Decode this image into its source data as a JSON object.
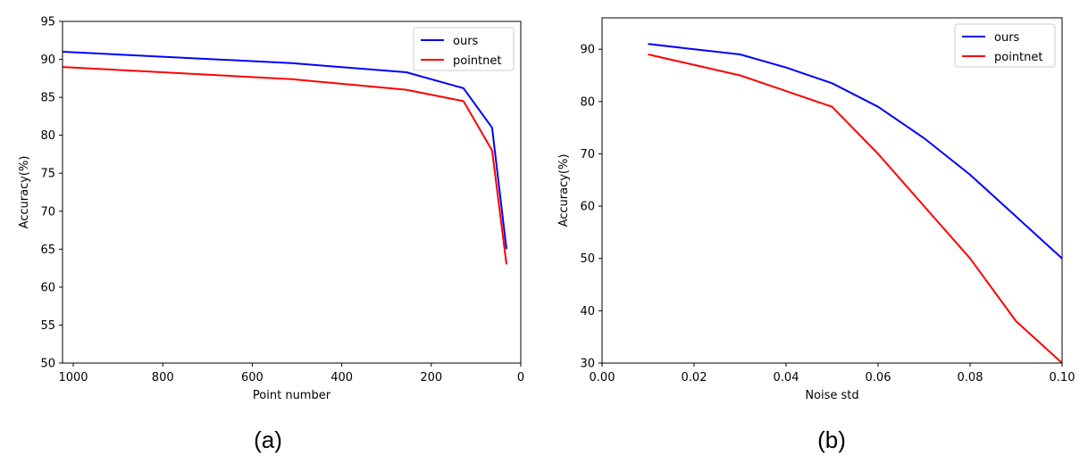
{
  "chart_data": [
    {
      "type": "line",
      "caption": "(a)",
      "xlabel": "Point number",
      "ylabel": "Accuracy(%)",
      "xlim": [
        1024,
        0
      ],
      "ylim": [
        50,
        95
      ],
      "x_inverted": true,
      "xticks": [
        1000,
        800,
        600,
        400,
        200,
        0
      ],
      "xtick_labels": [
        "1000",
        "800",
        "600",
        "400",
        "200",
        "0"
      ],
      "yticks": [
        50,
        55,
        60,
        65,
        70,
        75,
        80,
        85,
        90,
        95
      ],
      "ytick_labels": [
        "50",
        "55",
        "60",
        "65",
        "70",
        "75",
        "80",
        "85",
        "90",
        "95"
      ],
      "grid": false,
      "legend_position": "top-right",
      "series": [
        {
          "name": "ours",
          "color": "#0000ff",
          "x": [
            1024,
            512,
            256,
            128,
            64,
            32
          ],
          "y": [
            91.0,
            89.5,
            88.3,
            86.2,
            81.0,
            65.0
          ]
        },
        {
          "name": "pointnet",
          "color": "#ff0000",
          "x": [
            1024,
            512,
            256,
            128,
            64,
            32
          ],
          "y": [
            89.0,
            87.4,
            86.0,
            84.5,
            78.0,
            63.0
          ]
        }
      ]
    },
    {
      "type": "line",
      "caption": "(b)",
      "xlabel": "Noise std",
      "ylabel": "Accuracy(%)",
      "xlim": [
        0.0,
        0.1
      ],
      "ylim": [
        30,
        96
      ],
      "xticks": [
        0.0,
        0.02,
        0.04,
        0.06,
        0.08,
        0.1
      ],
      "xtick_labels": [
        "0.00",
        "0.02",
        "0.04",
        "0.06",
        "0.08",
        "0.10"
      ],
      "yticks": [
        30,
        40,
        50,
        60,
        70,
        80,
        90
      ],
      "ytick_labels": [
        "30",
        "40",
        "50",
        "60",
        "70",
        "80",
        "90"
      ],
      "grid": false,
      "legend_position": "top-right",
      "series": [
        {
          "name": "ours",
          "color": "#0000ff",
          "x": [
            0.01,
            0.03,
            0.04,
            0.05,
            0.06,
            0.07,
            0.08,
            0.09,
            0.1
          ],
          "y": [
            91.0,
            89.0,
            86.5,
            83.5,
            79.0,
            73.0,
            66.0,
            58.0,
            50.0
          ]
        },
        {
          "name": "pointnet",
          "color": "#ff0000",
          "x": [
            0.01,
            0.03,
            0.04,
            0.05,
            0.06,
            0.07,
            0.08,
            0.09,
            0.1
          ],
          "y": [
            89.0,
            85.0,
            82.0,
            79.0,
            70.0,
            60.0,
            50.0,
            38.0,
            30.0
          ]
        }
      ]
    }
  ]
}
